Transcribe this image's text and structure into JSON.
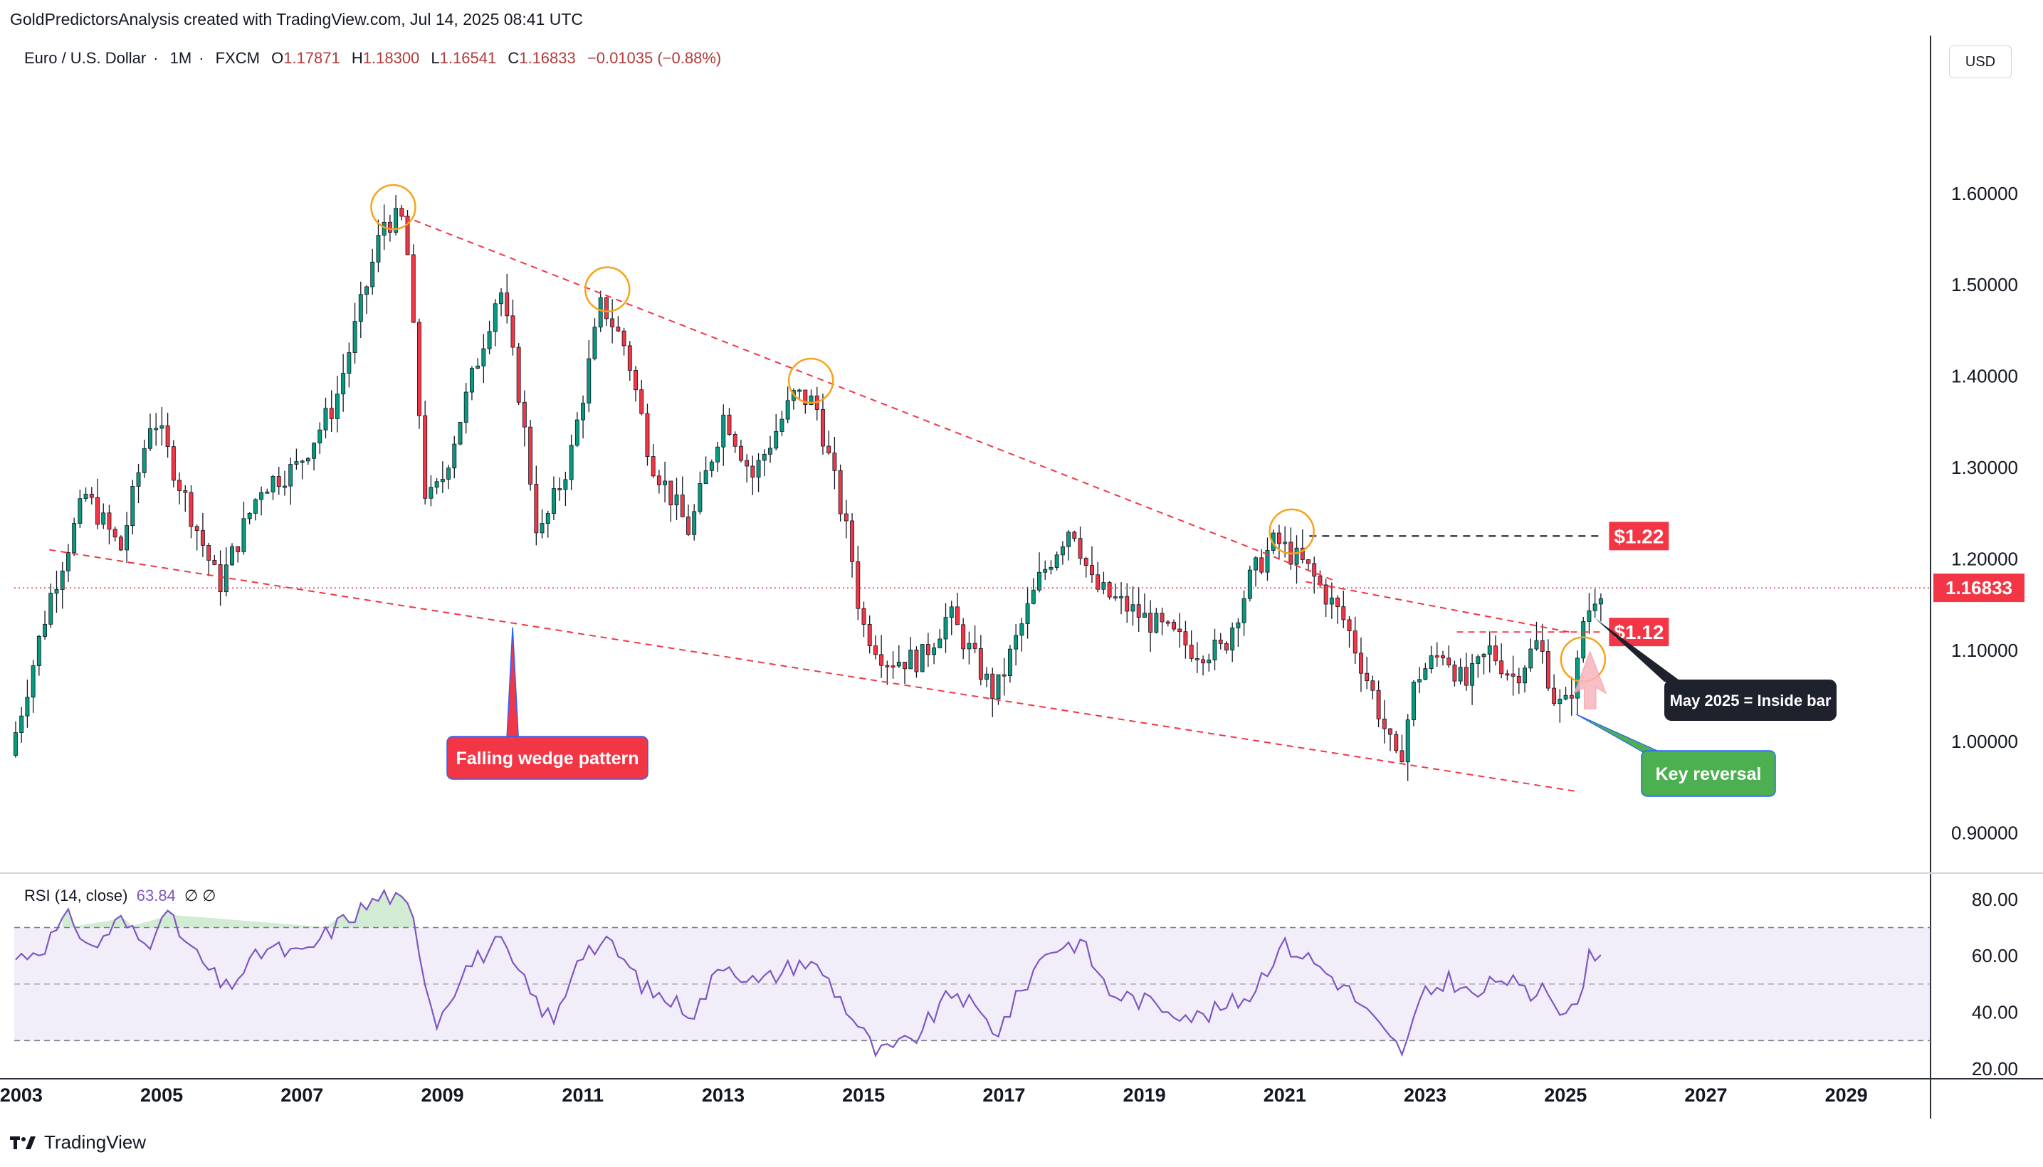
{
  "header": {
    "title": "GoldPredictorsAnalysis created with TradingView.com, Jul 14, 2025 08:41 UTC"
  },
  "symbol": {
    "name": "Euro / U.S. Dollar",
    "interval": "1M",
    "exchange": "FXCM",
    "open_label": "O",
    "open": "1.17871",
    "high_label": "H",
    "high": "1.18300",
    "low_label": "L",
    "low": "1.16541",
    "close_label": "C",
    "close": "1.16833",
    "change": "−0.01035 (−0.88%)"
  },
  "currency": "USD",
  "rsi_legend": {
    "label": "RSI (14, close)",
    "value": "63.84",
    "extra": "∅  ∅"
  },
  "footer": {
    "brand": "TradingView"
  },
  "colors": {
    "up": "#089981",
    "down": "#f23645",
    "rsi": "#7e57c2",
    "trend": "#f23645",
    "circle": "#f7a21b"
  },
  "chart_data": [
    {
      "type": "candlestick",
      "title": "Euro / U.S. Dollar · 1M · FXCM",
      "y_axis": {
        "ticks": [
          "1.60000",
          "1.50000",
          "1.40000",
          "1.30000",
          "1.20000",
          "1.10000",
          "1.00000",
          "0.90000"
        ],
        "ylim": [
          0.86,
          1.74
        ]
      },
      "x_axis": {
        "ticks": [
          "2003",
          "2005",
          "2007",
          "2009",
          "2011",
          "2013",
          "2015",
          "2017",
          "2019",
          "2021",
          "2023",
          "2025",
          "2027",
          "2029"
        ],
        "xlim": [
          2002.9,
          2030.2
        ]
      },
      "last_price": "1.16833",
      "anchors": [
        [
          2002.92,
          0.985
        ],
        [
          2003.5,
          1.16
        ],
        [
          2004.0,
          1.27
        ],
        [
          2004.5,
          1.21
        ],
        [
          2004.95,
          1.36
        ],
        [
          2005.9,
          1.17
        ],
        [
          2006.5,
          1.28
        ],
        [
          2007.0,
          1.3
        ],
        [
          2007.55,
          1.37
        ],
        [
          2008.25,
          1.57
        ],
        [
          2008.55,
          1.57
        ],
        [
          2008.85,
          1.26
        ],
        [
          2009.05,
          1.28
        ],
        [
          2009.9,
          1.5
        ],
        [
          2010.2,
          1.37
        ],
        [
          2010.45,
          1.22
        ],
        [
          2010.9,
          1.31
        ],
        [
          2011.35,
          1.48
        ],
        [
          2011.7,
          1.43
        ],
        [
          2012.05,
          1.31
        ],
        [
          2012.6,
          1.23
        ],
        [
          2013.1,
          1.36
        ],
        [
          2013.5,
          1.29
        ],
        [
          2014.1,
          1.38
        ],
        [
          2014.4,
          1.37
        ],
        [
          2014.9,
          1.21
        ],
        [
          2015.05,
          1.13
        ],
        [
          2015.4,
          1.09
        ],
        [
          2015.9,
          1.09
        ],
        [
          2016.3,
          1.14
        ],
        [
          2016.95,
          1.05
        ],
        [
          2017.6,
          1.18
        ],
        [
          2018.05,
          1.24
        ],
        [
          2018.35,
          1.17
        ],
        [
          2019.4,
          1.12
        ],
        [
          2019.8,
          1.1
        ],
        [
          2020.2,
          1.1
        ],
        [
          2020.6,
          1.18
        ],
        [
          2020.95,
          1.22
        ],
        [
          2021.4,
          1.19
        ],
        [
          2021.95,
          1.13
        ],
        [
          2022.35,
          1.05
        ],
        [
          2022.7,
          0.97
        ],
        [
          2022.95,
          1.07
        ],
        [
          2023.35,
          1.1
        ],
        [
          2023.65,
          1.06
        ],
        [
          2024.0,
          1.1
        ],
        [
          2024.35,
          1.07
        ],
        [
          2024.7,
          1.11
        ],
        [
          2024.95,
          1.04
        ],
        [
          2025.1,
          1.04
        ],
        [
          2025.25,
          1.08
        ],
        [
          2025.32,
          1.13
        ],
        [
          2025.45,
          1.15
        ],
        [
          2025.55,
          1.17
        ]
      ],
      "trendlines": [
        {
          "from": [
            2008.45,
            1.575
          ],
          "to": [
            2021.75,
            1.175
          ]
        },
        {
          "from": [
            2003.4,
            1.21
          ],
          "to": [
            2025.2,
            0.945
          ]
        },
        {
          "from": [
            2021.3,
            1.175
          ],
          "to": [
            2025.05,
            1.12
          ]
        }
      ],
      "resistance_levels": [
        {
          "value": 1.225,
          "label": "$1.22",
          "style": "dashed-black"
        },
        {
          "value": 1.12,
          "label": "$1.12",
          "style": "dashed-red"
        }
      ],
      "circled_highs": [
        [
          2008.3,
          1.585
        ],
        [
          2011.35,
          1.495
        ],
        [
          2014.25,
          1.395
        ],
        [
          2021.1,
          1.23
        ],
        [
          2025.25,
          1.09
        ]
      ],
      "annotations": [
        "Falling wedge pattern",
        "May 2025 = Inside bar",
        "Key reversal",
        "$1.22",
        "$1.12"
      ]
    },
    {
      "type": "line",
      "title": "RSI (14, close)",
      "y_axis": {
        "ticks": [
          "80.00",
          "60.00",
          "40.00",
          "20.00"
        ],
        "ylim": [
          18,
          88
        ]
      },
      "bands": {
        "upper": 70,
        "middle": 50,
        "lower": 30
      },
      "last_value": 63.84,
      "anchors": [
        [
          2002.92,
          59
        ],
        [
          2003.3,
          63
        ],
        [
          2003.7,
          74
        ],
        [
          2004.0,
          62
        ],
        [
          2004.4,
          73
        ],
        [
          2004.8,
          63
        ],
        [
          2005.0,
          77
        ],
        [
          2005.4,
          63
        ],
        [
          2005.9,
          48
        ],
        [
          2006.5,
          63
        ],
        [
          2007.0,
          60
        ],
        [
          2007.5,
          71
        ],
        [
          2008.2,
          82
        ],
        [
          2008.55,
          76
        ],
        [
          2008.9,
          36
        ],
        [
          2009.3,
          55
        ],
        [
          2009.8,
          65
        ],
        [
          2010.3,
          45
        ],
        [
          2010.6,
          36
        ],
        [
          2010.95,
          62
        ],
        [
          2011.4,
          64
        ],
        [
          2011.9,
          48
        ],
        [
          2012.6,
          40
        ],
        [
          2013.0,
          58
        ],
        [
          2013.5,
          50
        ],
        [
          2014.1,
          58
        ],
        [
          2014.4,
          55
        ],
        [
          2014.9,
          36
        ],
        [
          2015.2,
          25
        ],
        [
          2015.7,
          30
        ],
        [
          2016.3,
          48
        ],
        [
          2016.9,
          33
        ],
        [
          2017.6,
          62
        ],
        [
          2018.1,
          65
        ],
        [
          2018.5,
          47
        ],
        [
          2019.3,
          42
        ],
        [
          2019.8,
          38
        ],
        [
          2020.5,
          46
        ],
        [
          2020.95,
          64
        ],
        [
          2021.3,
          60
        ],
        [
          2021.9,
          48
        ],
        [
          2022.5,
          30
        ],
        [
          2022.7,
          26
        ],
        [
          2022.95,
          45
        ],
        [
          2023.35,
          52
        ],
        [
          2023.7,
          45
        ],
        [
          2024.1,
          53
        ],
        [
          2024.5,
          45
        ],
        [
          2024.7,
          52
        ],
        [
          2024.95,
          40
        ],
        [
          2025.15,
          40
        ],
        [
          2025.3,
          58
        ],
        [
          2025.45,
          62
        ],
        [
          2025.55,
          64
        ]
      ]
    }
  ]
}
